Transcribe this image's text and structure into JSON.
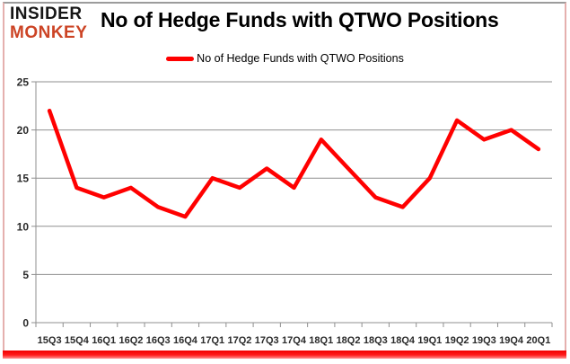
{
  "logo": {
    "line1": "INSIDER",
    "line2": "MONKEY"
  },
  "header": {
    "title": "No of Hedge Funds with QTWO Positions"
  },
  "legend": {
    "label": "No of Hedge Funds with QTWO Positions"
  },
  "colors": {
    "series_line": "#ff0000",
    "grid": "#8f8f8f",
    "axis": "#8f8f8f",
    "tick_label": "#2a2a2a",
    "title_text": "#000000",
    "logo_insider": "#161616",
    "logo_monkey": "#cc4425",
    "border_side": "#e5b0ae",
    "border_top": "#9c9c9c",
    "bottom_bar": "#ff0000",
    "plot_background": "#ffffff"
  },
  "chart_data": {
    "type": "line",
    "title": "No of Hedge Funds with QTWO Positions",
    "categories": [
      "15Q3",
      "15Q4",
      "16Q1",
      "16Q2",
      "16Q3",
      "16Q4",
      "17Q1",
      "17Q2",
      "17Q3",
      "17Q4",
      "18Q1",
      "18Q2",
      "18Q3",
      "18Q4",
      "19Q1",
      "19Q2",
      "19Q3",
      "19Q4",
      "20Q1"
    ],
    "series": [
      {
        "name": "No of Hedge Funds with QTWO Positions",
        "color": "#ff0000",
        "values": [
          22,
          14,
          13,
          14,
          12,
          11,
          15,
          14,
          16,
          14,
          19,
          16,
          13,
          12,
          15,
          21,
          19,
          20,
          18
        ]
      }
    ],
    "xlabel": "",
    "ylabel": "",
    "ylim": [
      0,
      25
    ],
    "yticks": [
      0,
      5,
      10,
      15,
      20,
      25
    ],
    "grid": true,
    "legend_position": "top"
  }
}
